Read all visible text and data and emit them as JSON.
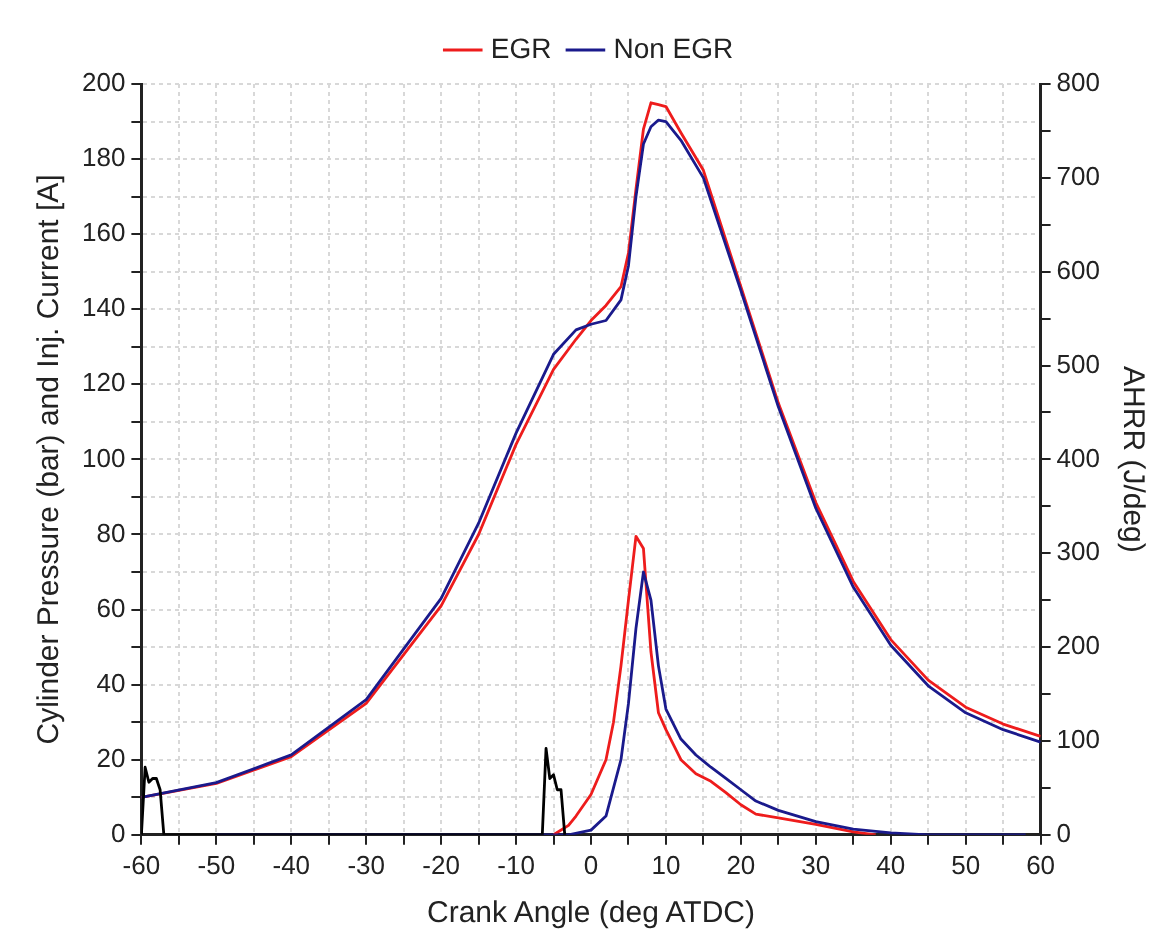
{
  "chart_data": {
    "type": "line",
    "xlabel": "Crank Angle (deg ATDC)",
    "ylabel": "Cylinder Pressure (bar) and Inj. Current [A]",
    "y2label": "AHRR (J/deg)",
    "xlim": [
      -60,
      60
    ],
    "xticks": [
      -60,
      {
        "value": -55,
        "label": null
      },
      -50,
      {
        "value": -45,
        "label": null
      },
      -40,
      {
        "value": -35,
        "label": null
      },
      -30,
      {
        "value": -25,
        "label": null
      },
      -20,
      {
        "value": -15,
        "label": null
      },
      -10,
      {
        "value": -5,
        "label": null
      },
      0,
      {
        "value": 5,
        "label": null
      },
      10,
      {
        "value": 15,
        "label": null
      },
      20,
      {
        "value": 25,
        "label": null
      },
      30,
      {
        "value": 35,
        "label": null
      },
      40,
      {
        "value": 45,
        "label": null
      },
      50,
      {
        "value": 55,
        "label": null
      },
      60
    ],
    "ylim": [
      0,
      200
    ],
    "yticks": [
      0,
      {
        "value": 10,
        "label": null
      },
      20,
      {
        "value": 30,
        "label": null
      },
      40,
      {
        "value": 50,
        "label": null
      },
      60,
      {
        "value": 70,
        "label": null
      },
      80,
      {
        "value": 90,
        "label": null
      },
      100,
      {
        "value": 110,
        "label": null
      },
      120,
      {
        "value": 130,
        "label": null
      },
      140,
      {
        "value": 150,
        "label": null
      },
      160,
      {
        "value": 170,
        "label": null
      },
      180,
      {
        "value": 190,
        "label": null
      },
      200
    ],
    "y2lim": [
      0,
      800
    ],
    "y2ticks": [
      0,
      {
        "value": 50,
        "label": null
      },
      100,
      {
        "value": 150,
        "label": null
      },
      200,
      {
        "value": 250,
        "label": null
      },
      300,
      {
        "value": 350,
        "label": null
      },
      400,
      {
        "value": 450,
        "label": null
      },
      500,
      {
        "value": 550,
        "label": null
      },
      600,
      {
        "value": 650,
        "label": null
      },
      700,
      {
        "value": 750,
        "label": null
      },
      800
    ],
    "grid": true,
    "legend": "top",
    "marker": "none",
    "line_style": "solid",
    "series": [
      {
        "name": "EGR",
        "color": "#ee1c1c",
        "x": [
          -60,
          -50,
          -40,
          -30,
          -20,
          -15,
          -10,
          -5,
          -2,
          0,
          2,
          4,
          5,
          6,
          7,
          8,
          9,
          10,
          12,
          15,
          20,
          25,
          30,
          35,
          40,
          45,
          50,
          55,
          60
        ],
        "values": [
          10,
          13.7,
          20.8,
          35,
          61,
          80,
          104,
          124,
          132,
          137,
          141,
          146,
          155,
          172,
          188,
          195,
          194.5,
          194,
          187,
          177,
          146,
          115,
          88.5,
          67.5,
          52,
          41.2,
          34,
          29.5,
          26.2
        ]
      },
      {
        "name": "Non EGR",
        "color": "#1a1a8c",
        "x": [
          -60,
          -50,
          -40,
          -30,
          -20,
          -15,
          -10,
          -5,
          -2,
          0,
          2,
          4,
          5,
          6,
          7,
          8,
          9,
          10,
          12,
          15,
          20,
          25,
          30,
          35,
          40,
          45,
          50,
          55,
          60
        ],
        "values": [
          10,
          13.9,
          21.3,
          36,
          63,
          83,
          107,
          128,
          134.5,
          136,
          137,
          142.5,
          151.6,
          170,
          184,
          188.6,
          190.4,
          190,
          185,
          175,
          145,
          114,
          87,
          66,
          50.5,
          39.7,
          32.5,
          28,
          24.7
        ]
      },
      {
        "color": "#ee1c1c",
        "axis": "y2",
        "x": [
          -5,
          -3,
          -2,
          0,
          2,
          3,
          4,
          5,
          6,
          7,
          8,
          9,
          10,
          12,
          14,
          16,
          18,
          20,
          22,
          25,
          30,
          35,
          38
        ],
        "values": [
          0,
          10,
          20,
          43,
          80,
          120,
          180,
          250,
          318,
          305,
          195,
          130,
          112,
          80,
          65,
          57,
          45,
          32,
          22,
          18,
          11,
          3,
          0
        ]
      },
      {
        "color": "#1a1a8c",
        "axis": "y2",
        "x": [
          -50,
          -3,
          0,
          2,
          4,
          5,
          6,
          7,
          8,
          9,
          10,
          12,
          14,
          16,
          18,
          20,
          22,
          25,
          30,
          35,
          40,
          45,
          58
        ],
        "values": [
          0,
          0,
          5,
          20,
          80,
          140,
          220,
          280,
          250,
          180,
          134,
          102,
          85,
          72,
          60,
          48,
          36,
          26,
          14,
          6,
          2,
          0,
          0
        ]
      },
      {
        "color": "#000000",
        "x": [
          -60,
          -59.5,
          -59,
          -58.5,
          -58,
          -57.5,
          -57,
          -6.5,
          -6,
          -5.5,
          -5,
          -4.5,
          -4,
          -3.5
        ],
        "values": [
          0,
          18,
          14,
          15,
          15,
          12,
          0,
          0,
          23,
          15,
          16,
          12,
          12,
          0
        ]
      }
    ]
  }
}
